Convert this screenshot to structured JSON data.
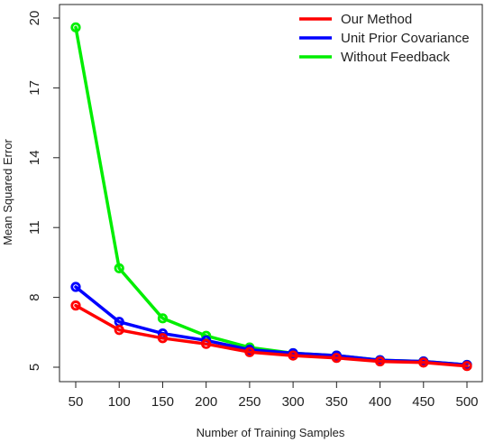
{
  "chart_data": {
    "type": "line",
    "title": "",
    "xlabel": "Number of Training Samples",
    "ylabel": "Mean Squared Error",
    "x": [
      50,
      100,
      150,
      200,
      250,
      300,
      350,
      400,
      450,
      500
    ],
    "xticks": [
      "50",
      "100",
      "150",
      "200",
      "250",
      "300",
      "350",
      "400",
      "450",
      "500"
    ],
    "yticks": [
      "5",
      "8",
      "11",
      "14",
      "17",
      "20"
    ],
    "ytick_values": [
      5,
      8,
      11,
      14,
      17,
      20
    ],
    "xlim": [
      50,
      500
    ],
    "ylim": [
      5,
      20
    ],
    "grid": false,
    "legend_position": "top-right",
    "series": [
      {
        "name": "Our Method",
        "color": "#ff0000",
        "values": [
          7.65,
          6.6,
          6.25,
          6.0,
          5.65,
          5.5,
          5.4,
          5.25,
          5.2,
          5.05
        ]
      },
      {
        "name": "Unit Prior Covariance",
        "color": "#0000ff",
        "values": [
          8.45,
          6.95,
          6.45,
          6.15,
          5.75,
          5.6,
          5.5,
          5.3,
          5.25,
          5.1
        ]
      },
      {
        "name": "Without Feedback",
        "color": "#00ee00",
        "values": [
          19.6,
          9.25,
          7.1,
          6.35,
          5.85,
          5.6,
          5.5,
          5.3,
          5.25,
          5.1
        ]
      }
    ]
  }
}
